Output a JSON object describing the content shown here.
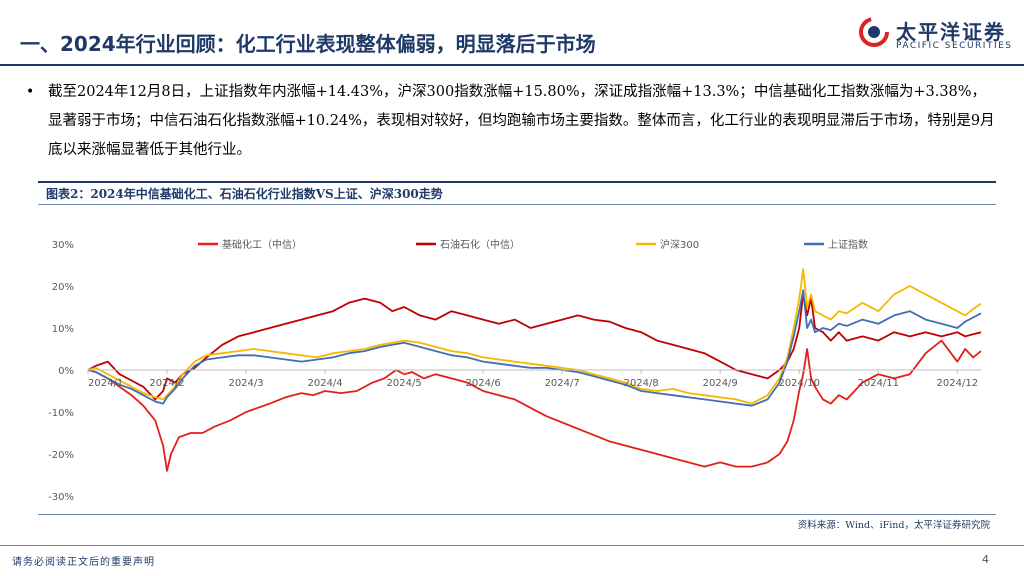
{
  "header": {
    "title": "一、2024年行业回顾：化工行业表现整体偏弱，明显落后于市场",
    "logo_cn": "太平洋证券",
    "logo_en": "PACIFIC SECURITIES"
  },
  "bullet": {
    "text": "截至2024年12月8日，上证指数年内涨幅+14.43%，沪深300指数涨幅+15.80%，深证成指涨幅+13.3%；中信基础化工指数涨幅为+3.38%，显著弱于市场；中信石油石化指数涨幅+10.24%，表现相对较好，但均跑输市场主要指数。整体而言，化工行业的表现明显滞后于市场，特别是9月底以来涨幅显著低于其他行业。"
  },
  "figure": {
    "title": "图表2：2024年中信基础化工、石油石化行业指数VS上证、沪深300走势",
    "source": "资料来源：Wind、iFind，太平洋证券研究院"
  },
  "footer": {
    "note": "请务必阅读正文后的重要声明",
    "page": "4"
  },
  "chart_data": {
    "type": "line",
    "ylim": [
      -30,
      30
    ],
    "y_ticks": [
      30,
      20,
      10,
      0,
      -10,
      -20,
      -30
    ],
    "y_tick_labels": [
      "30%",
      "20%",
      "10%",
      "0%",
      "-10%",
      "-20%",
      "-30%"
    ],
    "x_tick_labels": [
      "2024/1",
      "2024/2",
      "2024/3",
      "2024/4",
      "2024/5",
      "2024/6",
      "2024/7",
      "2024/8",
      "2024/9",
      "2024/10",
      "2024/11",
      "2024/12"
    ],
    "x_tick_months": [
      1,
      2,
      3,
      4,
      5,
      6,
      7,
      8,
      9,
      10,
      11,
      12
    ],
    "x_range_months": [
      1,
      12.3
    ],
    "legend_position": "top",
    "grid": false,
    "series": [
      {
        "name": "基础化工（中信）",
        "color": "#e0201b",
        "x": [
          1.0,
          1.1,
          1.25,
          1.4,
          1.55,
          1.7,
          1.85,
          1.95,
          2.0,
          2.05,
          2.15,
          2.3,
          2.45,
          2.6,
          2.8,
          3.0,
          3.15,
          3.3,
          3.5,
          3.7,
          3.85,
          4.0,
          4.2,
          4.4,
          4.6,
          4.75,
          4.9,
          5.0,
          5.1,
          5.25,
          5.4,
          5.6,
          5.8,
          6.0,
          6.2,
          6.4,
          6.6,
          6.8,
          7.0,
          7.2,
          7.4,
          7.6,
          7.8,
          8.0,
          8.2,
          8.4,
          8.6,
          8.8,
          9.0,
          9.2,
          9.4,
          9.6,
          9.75,
          9.85,
          9.93,
          10.0,
          10.05,
          10.1,
          10.15,
          10.2,
          10.3,
          10.4,
          10.5,
          10.6,
          10.8,
          11.0,
          11.2,
          11.4,
          11.6,
          11.8,
          12.0,
          12.1,
          12.2,
          12.3
        ],
        "values": [
          0,
          -0.5,
          -2.0,
          -4.0,
          -6.0,
          -8.5,
          -12.0,
          -18.0,
          -24.0,
          -20.0,
          -16.0,
          -15.0,
          -15.0,
          -13.5,
          -12.0,
          -10.0,
          -9.0,
          -8.0,
          -6.5,
          -5.5,
          -6.0,
          -5.0,
          -5.5,
          -5.0,
          -3.0,
          -2.0,
          0.0,
          -1.0,
          -0.5,
          -2.0,
          -1.0,
          -2.0,
          -3.0,
          -5.0,
          -6.0,
          -7.0,
          -9.0,
          -11.0,
          -12.5,
          -14.0,
          -15.5,
          -17.0,
          -18.0,
          -19.0,
          -20.0,
          -21.0,
          -22.0,
          -23.0,
          -22.0,
          -23.0,
          -23.0,
          -22.0,
          -20.0,
          -17.0,
          -12.0,
          -5.0,
          -1.0,
          5.0,
          -2.0,
          -4.0,
          -7.0,
          -8.0,
          -6.0,
          -7.0,
          -3.0,
          -1.0,
          -2.0,
          -1.0,
          4.0,
          7.0,
          2.0,
          5.0,
          3.0,
          4.5
        ]
      },
      {
        "name": "石油石化（中信）",
        "color": "#c00000",
        "x": [
          1.0,
          1.1,
          1.25,
          1.4,
          1.55,
          1.7,
          1.85,
          1.95,
          2.0,
          2.1,
          2.2,
          2.35,
          2.5,
          2.7,
          2.9,
          3.1,
          3.3,
          3.5,
          3.7,
          3.9,
          4.1,
          4.3,
          4.5,
          4.7,
          4.85,
          5.0,
          5.2,
          5.4,
          5.6,
          5.8,
          6.0,
          6.2,
          6.4,
          6.6,
          6.8,
          7.0,
          7.2,
          7.4,
          7.6,
          7.8,
          8.0,
          8.2,
          8.4,
          8.6,
          8.8,
          9.0,
          9.2,
          9.4,
          9.6,
          9.75,
          9.85,
          9.93,
          10.0,
          10.05,
          10.1,
          10.15,
          10.2,
          10.3,
          10.4,
          10.5,
          10.6,
          10.8,
          11.0,
          11.2,
          11.4,
          11.6,
          11.8,
          12.0,
          12.1,
          12.2,
          12.3
        ],
        "values": [
          0,
          1.0,
          2.0,
          -1.0,
          -2.5,
          -4.0,
          -7.0,
          -5.0,
          -2.0,
          -3.0,
          -1.0,
          0.5,
          3.0,
          6.0,
          8.0,
          9.0,
          10.0,
          11.0,
          12.0,
          13.0,
          14.0,
          16.0,
          17.0,
          16.0,
          14.0,
          15.0,
          13.0,
          12.0,
          14.0,
          13.0,
          12.0,
          11.0,
          12.0,
          10.0,
          11.0,
          12.0,
          13.0,
          12.0,
          11.5,
          10.0,
          9.0,
          7.0,
          6.0,
          5.0,
          4.0,
          2.0,
          0.0,
          -1.0,
          -2.0,
          0.0,
          2.0,
          5.0,
          10.0,
          18.0,
          13.0,
          17.0,
          10.0,
          9.0,
          7.0,
          9.0,
          7.0,
          8.0,
          7.0,
          9.0,
          8.0,
          9.0,
          8.0,
          9.0,
          8.0,
          8.5,
          9.0
        ]
      },
      {
        "name": "沪深300",
        "color": "#f5b800",
        "x": [
          1.0,
          1.1,
          1.25,
          1.4,
          1.55,
          1.7,
          1.85,
          1.95,
          2.0,
          2.1,
          2.2,
          2.35,
          2.5,
          2.7,
          2.9,
          3.1,
          3.3,
          3.5,
          3.7,
          3.9,
          4.1,
          4.3,
          4.5,
          4.7,
          4.85,
          5.0,
          5.2,
          5.4,
          5.6,
          5.8,
          6.0,
          6.2,
          6.4,
          6.6,
          6.8,
          7.0,
          7.2,
          7.4,
          7.6,
          7.8,
          8.0,
          8.2,
          8.4,
          8.6,
          8.8,
          9.0,
          9.2,
          9.4,
          9.6,
          9.75,
          9.85,
          9.93,
          10.0,
          10.05,
          10.1,
          10.15,
          10.2,
          10.3,
          10.4,
          10.5,
          10.6,
          10.8,
          11.0,
          11.2,
          11.4,
          11.6,
          11.8,
          12.0,
          12.1,
          12.2,
          12.3
        ],
        "values": [
          0,
          0.5,
          -1.0,
          -2.5,
          -4.0,
          -5.5,
          -6.5,
          -7.0,
          -6.0,
          -4.0,
          -1.0,
          2.0,
          3.5,
          4.0,
          4.5,
          5.0,
          4.5,
          4.0,
          3.5,
          3.0,
          4.0,
          4.5,
          5.0,
          6.0,
          6.5,
          7.0,
          6.5,
          5.5,
          4.5,
          4.0,
          3.0,
          2.5,
          2.0,
          1.5,
          1.0,
          0.5,
          0.0,
          -1.0,
          -2.0,
          -3.0,
          -4.5,
          -5.0,
          -4.5,
          -5.5,
          -6.0,
          -6.5,
          -7.0,
          -8.0,
          -6.0,
          -2.0,
          3.0,
          10.0,
          17.0,
          24.0,
          15.0,
          18.0,
          14.0,
          13.0,
          12.0,
          14.0,
          13.5,
          16.0,
          14.0,
          18.0,
          20.0,
          18.0,
          16.0,
          14.0,
          13.0,
          14.5,
          15.8
        ]
      },
      {
        "name": "上证指数",
        "color": "#3f6fb3",
        "x": [
          1.0,
          1.1,
          1.25,
          1.4,
          1.55,
          1.7,
          1.85,
          1.95,
          2.0,
          2.1,
          2.2,
          2.35,
          2.5,
          2.7,
          2.9,
          3.1,
          3.3,
          3.5,
          3.7,
          3.9,
          4.1,
          4.3,
          4.5,
          4.7,
          4.85,
          5.0,
          5.2,
          5.4,
          5.6,
          5.8,
          6.0,
          6.2,
          6.4,
          6.6,
          6.8,
          7.0,
          7.2,
          7.4,
          7.6,
          7.8,
          8.0,
          8.2,
          8.4,
          8.6,
          8.8,
          9.0,
          9.2,
          9.4,
          9.6,
          9.75,
          9.85,
          9.93,
          10.0,
          10.05,
          10.1,
          10.15,
          10.2,
          10.3,
          10.4,
          10.5,
          10.6,
          10.8,
          11.0,
          11.2,
          11.4,
          11.6,
          11.8,
          12.0,
          12.1,
          12.2,
          12.3
        ],
        "values": [
          0,
          -0.5,
          -2.0,
          -3.5,
          -4.5,
          -6.0,
          -7.5,
          -8.0,
          -6.5,
          -4.5,
          -2.0,
          1.0,
          2.5,
          3.0,
          3.5,
          3.5,
          3.0,
          2.5,
          2.0,
          2.5,
          3.0,
          4.0,
          4.5,
          5.5,
          6.0,
          6.5,
          5.5,
          4.5,
          3.5,
          3.0,
          2.0,
          1.5,
          1.0,
          0.5,
          0.5,
          0.0,
          -0.5,
          -1.5,
          -2.5,
          -3.5,
          -5.0,
          -5.5,
          -6.0,
          -6.5,
          -7.0,
          -7.5,
          -8.0,
          -8.5,
          -7.0,
          -3.0,
          2.0,
          8.0,
          14.0,
          19.0,
          10.0,
          12.0,
          9.0,
          10.0,
          9.5,
          11.0,
          10.5,
          12.0,
          11.0,
          13.0,
          14.0,
          12.0,
          11.0,
          10.0,
          11.5,
          12.5,
          13.5
        ]
      }
    ]
  }
}
